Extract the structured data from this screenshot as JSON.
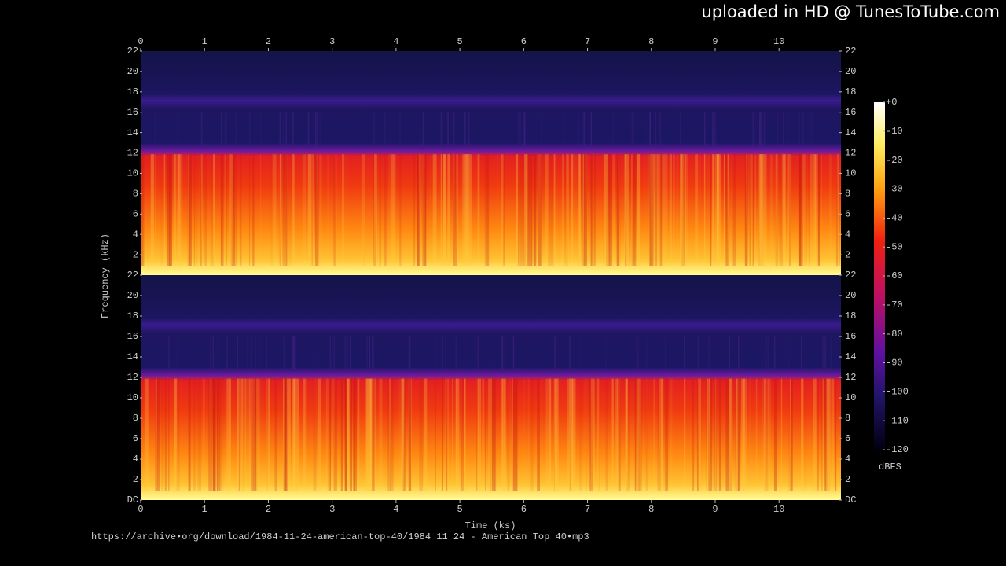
{
  "watermark": "uploaded in HD @ TunesToTube.com",
  "source": "https://archive•org/download/1984-11-24-american-top-40/1984 11 24 - American Top 40•mp3",
  "chart_data": [
    {
      "type": "spectrogram",
      "ylabel": "Frequency (kHz)",
      "xlim": [
        0,
        10.97
      ],
      "xticks": [
        0,
        1,
        2,
        3,
        4,
        5,
        6,
        7,
        8,
        9,
        10
      ],
      "ylim": [
        0,
        22
      ],
      "yticks": [
        2,
        4,
        6,
        8,
        10,
        12,
        14,
        16,
        18,
        20,
        22
      ],
      "colorbar": {
        "clim": [
          -120,
          0
        ],
        "ticks": [
          {
            "value": 0,
            "label": "+0"
          },
          -10,
          -20,
          -30,
          -40,
          -50,
          -60,
          -70,
          -80,
          -90,
          -100,
          -110,
          -120
        ],
        "label": "dBFS"
      }
    },
    {
      "type": "spectrogram",
      "xlabel": "Time (ks)",
      "xlim": [
        0,
        10.97
      ],
      "xticks": [
        0,
        1,
        2,
        3,
        4,
        5,
        6,
        7,
        8,
        9,
        10
      ],
      "ylim": [
        0,
        22
      ],
      "yticks": [
        {
          "value": 0,
          "label": "DC"
        },
        2,
        4,
        6,
        8,
        10,
        12,
        14,
        16,
        18,
        20,
        22
      ]
    }
  ]
}
